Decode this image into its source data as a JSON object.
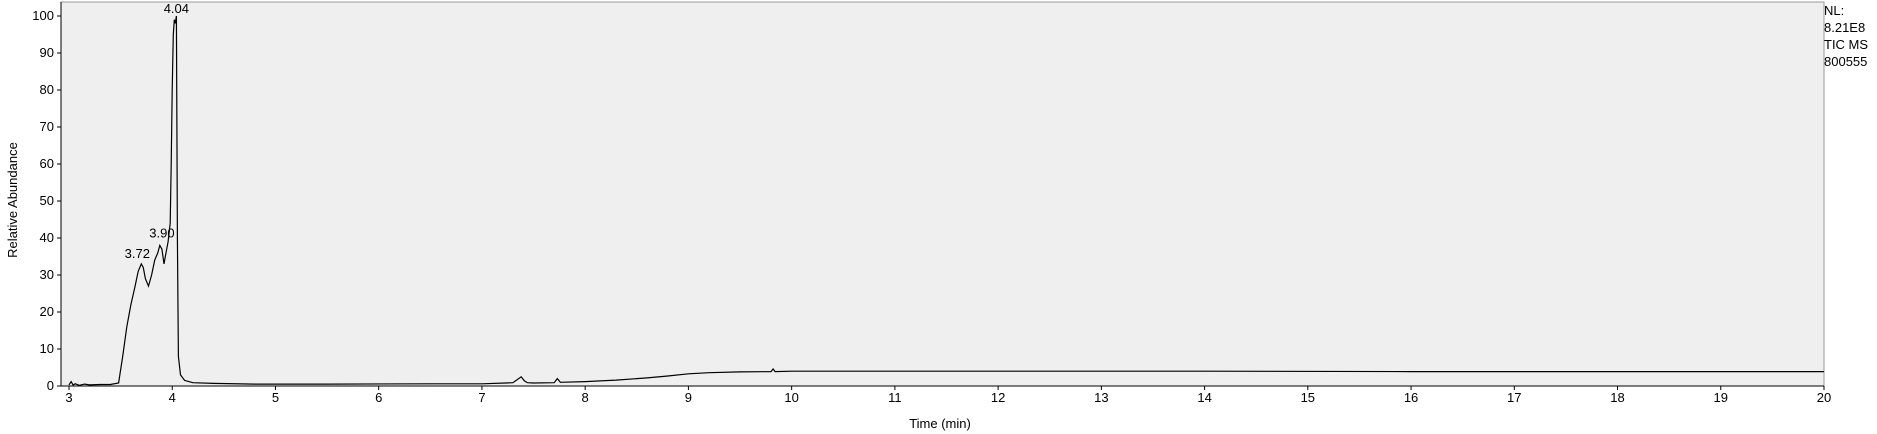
{
  "side_info": [
    "NL:",
    "8.21E8",
    "TIC  MS",
    "800555"
  ],
  "chart_data": {
    "type": "line",
    "title": "",
    "xlabel": "Time (min)",
    "ylabel": "Relative Abundance",
    "xlim": [
      3,
      20
    ],
    "ylim": [
      0,
      100
    ],
    "xticks": [
      "3",
      "4",
      "5",
      "6",
      "7",
      "8",
      "9",
      "10",
      "11",
      "12",
      "13",
      "14",
      "15",
      "16",
      "17",
      "18",
      "19",
      "20"
    ],
    "yticks": [
      "0",
      "10",
      "20",
      "30",
      "40",
      "50",
      "60",
      "70",
      "80",
      "90",
      "100"
    ],
    "grid": false,
    "background": "#efefef",
    "line_color": "#000000",
    "peak_labels": [
      {
        "x": 3.72,
        "y": 33,
        "text": "3.72"
      },
      {
        "x": 3.9,
        "y": 38,
        "text": "3.90"
      },
      {
        "x": 4.04,
        "y": 100,
        "text": "4.04"
      }
    ],
    "series": [
      {
        "x": [
          3.0,
          3.02,
          3.04,
          3.06,
          3.1,
          3.15,
          3.2,
          3.3,
          3.4,
          3.48,
          3.52,
          3.56,
          3.6,
          3.64,
          3.67,
          3.7,
          3.72,
          3.74,
          3.77,
          3.8,
          3.83,
          3.86,
          3.88,
          3.9,
          3.92,
          3.94,
          3.96,
          3.98,
          3.99,
          4.0,
          4.01,
          4.02,
          4.03,
          4.04,
          4.05,
          4.06,
          4.08,
          4.12,
          4.2,
          4.4,
          4.8,
          5.5,
          6.5,
          7.0,
          7.3,
          7.38,
          7.41,
          7.44,
          7.5,
          7.7,
          7.73,
          7.76,
          8.0,
          8.3,
          8.6,
          8.8,
          9.0,
          9.2,
          9.5,
          9.8,
          9.82,
          9.84,
          10.0,
          12.0,
          14.0,
          16.0,
          18.0,
          20.0
        ],
        "y": [
          0.3,
          1.2,
          0.3,
          0.6,
          0.2,
          0.5,
          0.3,
          0.4,
          0.4,
          0.8,
          8,
          16,
          22,
          27,
          31,
          33,
          32,
          29,
          27,
          30,
          34,
          36,
          38,
          37,
          33,
          36,
          39,
          44,
          60,
          80,
          95,
          99,
          98,
          100,
          40,
          8,
          3,
          1.5,
          0.9,
          0.7,
          0.5,
          0.5,
          0.6,
          0.6,
          0.9,
          2.5,
          1.4,
          0.9,
          0.8,
          0.9,
          2.0,
          1.0,
          1.2,
          1.6,
          2.2,
          2.7,
          3.3,
          3.6,
          3.8,
          3.9,
          4.6,
          3.9,
          4.0,
          4.0,
          4.0,
          3.9,
          3.9,
          3.9
        ]
      }
    ]
  }
}
